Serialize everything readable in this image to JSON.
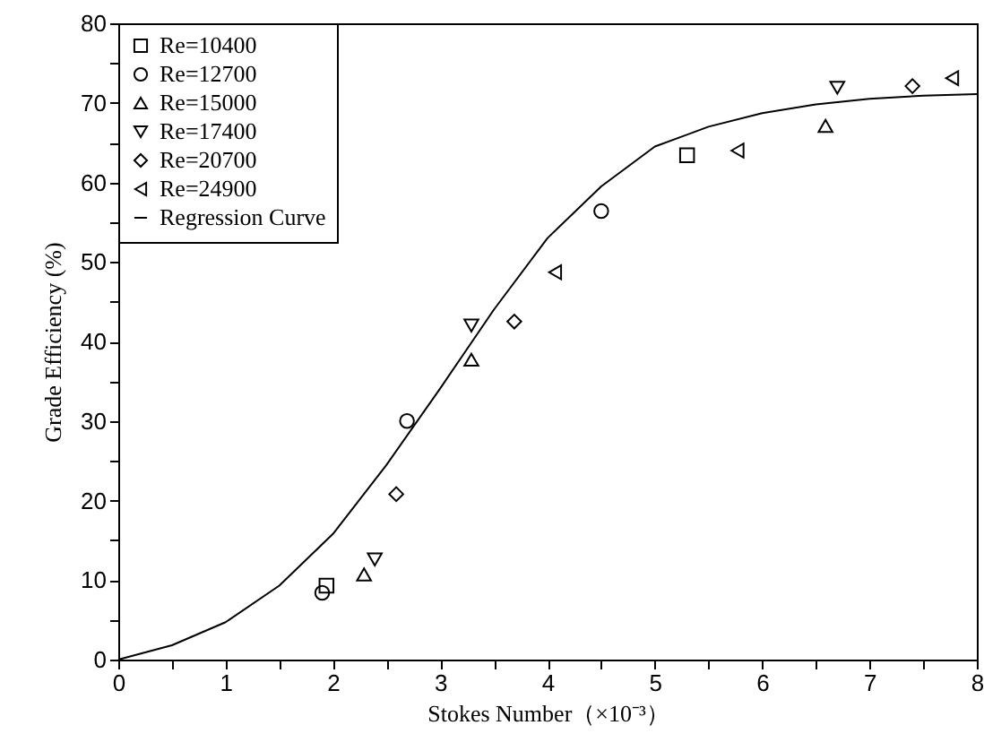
{
  "chart_data": {
    "type": "scatter",
    "xlabel": "Stokes Number（×10⁻³）",
    "ylabel": "Grade Efficiency (%)",
    "xlim": [
      0,
      8
    ],
    "ylim": [
      0,
      80
    ],
    "xticks": [
      0,
      {
        "value": 0.5,
        "label": null
      },
      1,
      {
        "value": 1.5,
        "label": null
      },
      2,
      {
        "value": 2.5,
        "label": null
      },
      3,
      {
        "value": 3.5,
        "label": null
      },
      4,
      {
        "value": 4.5,
        "label": null
      },
      5,
      {
        "value": 5.5,
        "label": null
      },
      6,
      {
        "value": 6.5,
        "label": null
      },
      7,
      {
        "value": 7.5,
        "label": null
      },
      8
    ],
    "yticks": [
      0,
      {
        "value": 5,
        "label": null
      },
      10,
      {
        "value": 15,
        "label": null
      },
      20,
      {
        "value": 25,
        "label": null
      },
      30,
      {
        "value": 35,
        "label": null
      },
      40,
      {
        "value": 45,
        "label": null
      },
      50,
      {
        "value": 55,
        "label": null
      },
      60,
      {
        "value": 65,
        "label": null
      },
      70,
      {
        "value": 75,
        "label": null
      },
      80
    ],
    "grid": false,
    "legend": "top left",
    "series": [
      {
        "name": "Re=10400",
        "color": "#000000",
        "marker": "square",
        "x": [
          1.94,
          5.3
        ],
        "values": [
          9.3,
          63.4
        ]
      },
      {
        "name": "Re=12700",
        "color": "#000000",
        "marker": "circle",
        "x": [
          1.9,
          2.69,
          4.5
        ],
        "values": [
          8.4,
          30,
          56.4
        ]
      },
      {
        "name": "Re=15000",
        "color": "#000000",
        "marker": "triangle",
        "x": [
          2.29,
          3.29,
          6.59
        ],
        "values": [
          10.7,
          37.7,
          67.1
        ]
      },
      {
        "name": "Re=17400",
        "color": "#000000",
        "marker": "triangle-down",
        "x": [
          2.39,
          3.29,
          6.7
        ],
        "values": [
          12.6,
          42,
          71.9
        ]
      },
      {
        "name": "Re=20700",
        "color": "#000000",
        "marker": "diamond",
        "x": [
          2.59,
          3.69,
          7.4
        ],
        "values": [
          20.8,
          42.5,
          72.1
        ]
      },
      {
        "name": "Re=24900",
        "color": "#000000",
        "marker": "triangle-left",
        "x": [
          4.07,
          5.77,
          7.77
        ],
        "values": [
          48.7,
          64,
          73.1
        ]
      },
      {
        "name": "Regression Curve",
        "type": "line",
        "color": "#000000",
        "marker": "none",
        "line_style": "solid",
        "x": [
          0,
          0.5,
          1,
          1.5,
          2,
          2.5,
          3,
          3.5,
          4,
          4.5,
          5,
          5.5,
          6,
          6.5,
          7,
          7.5,
          8
        ],
        "values": [
          0,
          1.8,
          4.7,
          9.3,
          15.8,
          24.5,
          34.1,
          44,
          53,
          59.5,
          64.5,
          67,
          68.7,
          69.8,
          70.5,
          70.9,
          71.1
        ]
      }
    ]
  }
}
